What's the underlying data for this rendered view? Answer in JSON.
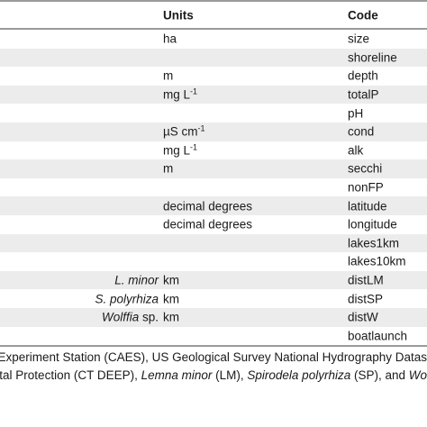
{
  "table": {
    "headers": {
      "units": "Units",
      "code": "Code"
    },
    "rows": [
      {
        "var_prefix": "",
        "var_italic": "",
        "var_suffix": "",
        "units": "ha",
        "units_sup": "",
        "code": "size"
      },
      {
        "var_prefix": "",
        "var_italic": "",
        "var_suffix": "",
        "units": "",
        "units_sup": "",
        "code": "shoreline"
      },
      {
        "var_prefix": "",
        "var_italic": "",
        "var_suffix": "",
        "units": "m",
        "units_sup": "",
        "code": "depth"
      },
      {
        "var_prefix": "",
        "var_italic": "",
        "var_suffix": "",
        "units": "mg L",
        "units_sup": "-1",
        "code": "totalP"
      },
      {
        "var_prefix": "",
        "var_italic": "",
        "var_suffix": "",
        "units": "",
        "units_sup": "",
        "code": "pH"
      },
      {
        "var_prefix": "",
        "var_italic": "",
        "var_suffix": "",
        "units": "µS cm",
        "units_sup": "-1",
        "code": "cond"
      },
      {
        "var_prefix": "",
        "var_italic": "",
        "var_suffix": "",
        "units": "mg L",
        "units_sup": "-1",
        "code": "alk"
      },
      {
        "var_prefix": "",
        "var_italic": "",
        "var_suffix": "",
        "units": "m",
        "units_sup": "",
        "code": "secchi"
      },
      {
        "var_prefix": "",
        "var_italic": "",
        "var_suffix": "",
        "units": "",
        "units_sup": "",
        "code": "nonFP"
      },
      {
        "var_prefix": "",
        "var_italic": "",
        "var_suffix": "",
        "units": "decimal degrees",
        "units_sup": "",
        "code": "latitude"
      },
      {
        "var_prefix": "",
        "var_italic": "",
        "var_suffix": "",
        "units": "decimal degrees",
        "units_sup": "",
        "code": "longitude"
      },
      {
        "var_prefix": "",
        "var_italic": "",
        "var_suffix": "",
        "units": "",
        "units_sup": "",
        "code": "lakes1km"
      },
      {
        "var_prefix": "",
        "var_italic": "",
        "var_suffix": "",
        "units": "",
        "units_sup": "",
        "code": "lakes10km"
      },
      {
        "var_prefix": "",
        "var_italic": "L. minor",
        "var_suffix": "",
        "units": "km",
        "units_sup": "",
        "code": "distLM"
      },
      {
        "var_prefix": "",
        "var_italic": "S. polyrhiza",
        "var_suffix": "",
        "units": "km",
        "units_sup": "",
        "code": "distSP"
      },
      {
        "var_prefix": "",
        "var_italic": "Wolffia",
        "var_suffix": " sp.",
        "units": "km",
        "units_sup": "",
        "code": "distW"
      },
      {
        "var_prefix": "",
        "var_italic": "",
        "var_suffix": "",
        "units": "",
        "units_sup": "",
        "code": "boatlaunch"
      }
    ]
  },
  "footnote": {
    "line1": "ural Experiment Station (CAES), US Geological Survey National Hydrography Datas",
    "line2_a": "mental Protection (CT DEEP), ",
    "line2_b": "Lemna minor",
    "line2_c": " (LM), ",
    "line2_d": "Spirodela polyrhiza",
    "line2_e": " (SP), and ",
    "line2_f": "Wo"
  }
}
